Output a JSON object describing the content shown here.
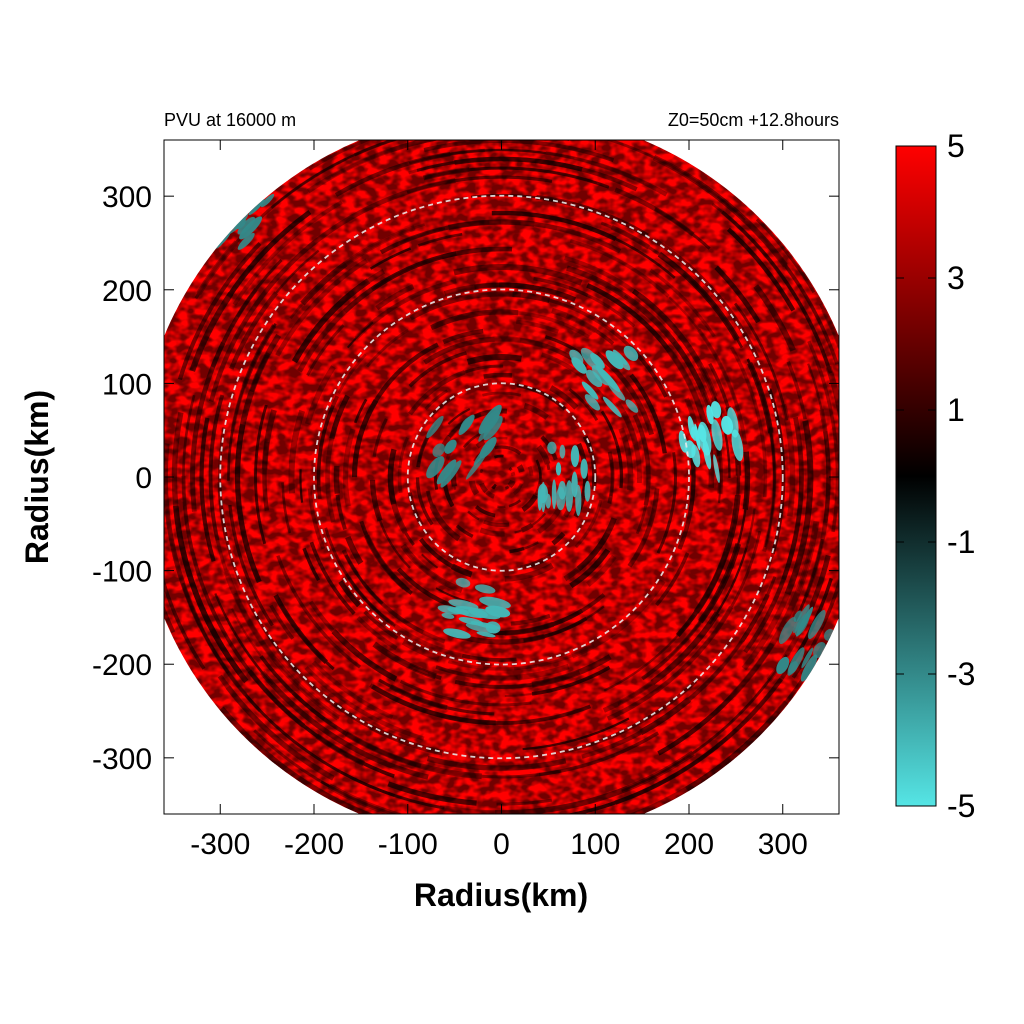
{
  "chart_data": {
    "type": "heatmap",
    "title_left": "PVU at 16000 m",
    "title_right": "Z0=50cm  +12.8hours",
    "xlabel": "Radius(km)",
    "ylabel": "Radius(km)",
    "xlim": [
      -360,
      360
    ],
    "ylim": [
      -360,
      360
    ],
    "xticks": [
      -300,
      -200,
      -100,
      0,
      100,
      200,
      300
    ],
    "yticks": [
      300,
      200,
      100,
      0,
      -100,
      -200,
      -300
    ],
    "domain_radius_km": 390,
    "range_rings_km": [
      100,
      200,
      300
    ],
    "colorbar": {
      "min": -5,
      "max": 5,
      "ticks": [
        5,
        3,
        1,
        -1,
        -3,
        -5
      ],
      "colors": [
        "#55e5e5",
        "#000000",
        "#ff0000"
      ]
    },
    "field_summary": {
      "dominant_range": [
        2,
        5
      ],
      "negative_regions": [
        {
          "center_km": [
            220,
            40
          ],
          "value": -5
        },
        {
          "center_km": [
            110,
            100
          ],
          "value": -4
        },
        {
          "center_km": [
            -30,
            -140
          ],
          "value": -4
        },
        {
          "center_km": [
            70,
            0
          ],
          "value": -4
        },
        {
          "center_km": [
            -40,
            30
          ],
          "value": -3
        },
        {
          "center_km": [
            -280,
            280
          ],
          "value": -3
        },
        {
          "center_km": [
            330,
            -180
          ],
          "value": -3
        }
      ]
    }
  }
}
